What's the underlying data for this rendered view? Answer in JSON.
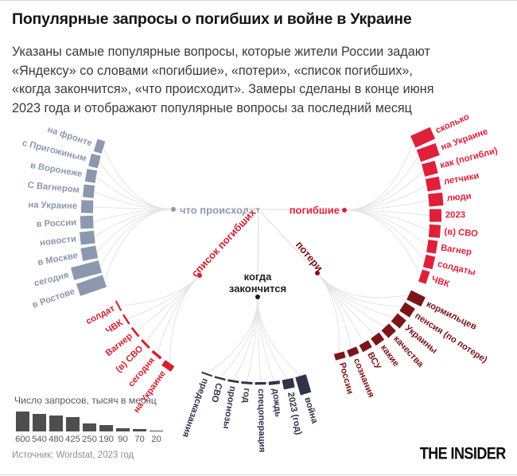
{
  "header": {
    "title": "Популярные запросы о погибших и войне в Украине",
    "subtitle_lines": [
      "Указаны самые популярные вопросы, которые жители России задают",
      "«Яндексу» со словами «погибшие», «потери», «список погибших»,",
      "«когда закончится», «что происходит». Замеры сделаны в конце июня",
      "2023 года и отображают популярные вопросы за последний месяц"
    ]
  },
  "chart_data": {
    "type": "radial-fan-bar",
    "unit": "тысяч запросов в месяц",
    "fans": [
      {
        "id": "what-happens",
        "label": "что происходит",
        "color": "#8c98ad",
        "head_color": "#8e9aae",
        "items": [
          {
            "label": "на фронте",
            "value": 170
          },
          {
            "label": "с Пригожиным",
            "value": 200
          },
          {
            "label": "в Воронеже",
            "value": 215
          },
          {
            "label": "С Вагнером",
            "value": 225
          },
          {
            "label": "на Украине",
            "value": 250
          },
          {
            "label": "в России",
            "value": 270
          },
          {
            "label": "новости",
            "value": 300
          },
          {
            "label": "в Москве",
            "value": 320
          },
          {
            "label": "сегодня",
            "value": 600
          },
          {
            "label": "в Ростове",
            "value": 580
          }
        ]
      },
      {
        "id": "deceased",
        "label": "погибшие",
        "color": "#e0203a",
        "head_color": "#e0203a",
        "items": [
          {
            "label": "сколько",
            "value": 450
          },
          {
            "label": "на Украине",
            "value": 420
          },
          {
            "label": "как (погибли)",
            "value": 285
          },
          {
            "label": "летчики",
            "value": 285
          },
          {
            "label": "люди",
            "value": 300
          },
          {
            "label": "2023",
            "value": 250
          },
          {
            "label": "(в) СВО",
            "value": 235
          },
          {
            "label": "Вагнер",
            "value": 200
          },
          {
            "label": "солдаты",
            "value": 200
          },
          {
            "label": "ЧВК",
            "value": 165
          }
        ]
      },
      {
        "id": "death-list",
        "label": "список погибших",
        "color": "#d4202f",
        "head_color": "#d4202f",
        "items": [
          {
            "label": "солдат",
            "value": 35
          },
          {
            "label": "ЧВК",
            "value": 40
          },
          {
            "label": "Вагнер",
            "value": 45
          },
          {
            "label": "(в) СВО",
            "value": 50
          },
          {
            "label": "сегодня",
            "value": 60
          },
          {
            "label": "на Украине",
            "value": 135
          }
        ]
      },
      {
        "id": "losses",
        "label": "потери",
        "color": "#7d1417",
        "head_color": "#7d1417",
        "items": [
          {
            "label": "кормильцев",
            "value": 335
          },
          {
            "label": "пенсия (по потере)",
            "value": 250
          },
          {
            "label": "Украины",
            "value": 235
          },
          {
            "label": "качества",
            "value": 215
          },
          {
            "label": "какие",
            "value": 185
          },
          {
            "label": "ВСУ",
            "value": 165
          },
          {
            "label": "сознания",
            "value": 150
          },
          {
            "label": "России",
            "value": 135
          }
        ]
      },
      {
        "id": "when-ends",
        "label": "когда закончится",
        "label_lines": [
          "когда",
          "закончится"
        ],
        "color": "#30344a",
        "head_color": "#1d1d26",
        "items": [
          {
            "label": "предсказания",
            "value": 35
          },
          {
            "label": "СВО",
            "value": 40
          },
          {
            "label": "прогнозы",
            "value": 45
          },
          {
            "label": "год",
            "value": 50
          },
          {
            "label": "спецоперация",
            "value": 55
          },
          {
            "label": "дождь",
            "value": 70
          },
          {
            "label": "2023 (год)",
            "value": 200
          },
          {
            "label": "война",
            "value": 390
          }
        ]
      }
    ]
  },
  "legend": {
    "title": "Число запросов, тысяч в месяц",
    "values": [
      600,
      540,
      480,
      425,
      250,
      190,
      90,
      70,
      20
    ]
  },
  "footer": {
    "source": "Источник: Wordstat, 2023 год",
    "logo": "THE INSIDER"
  }
}
